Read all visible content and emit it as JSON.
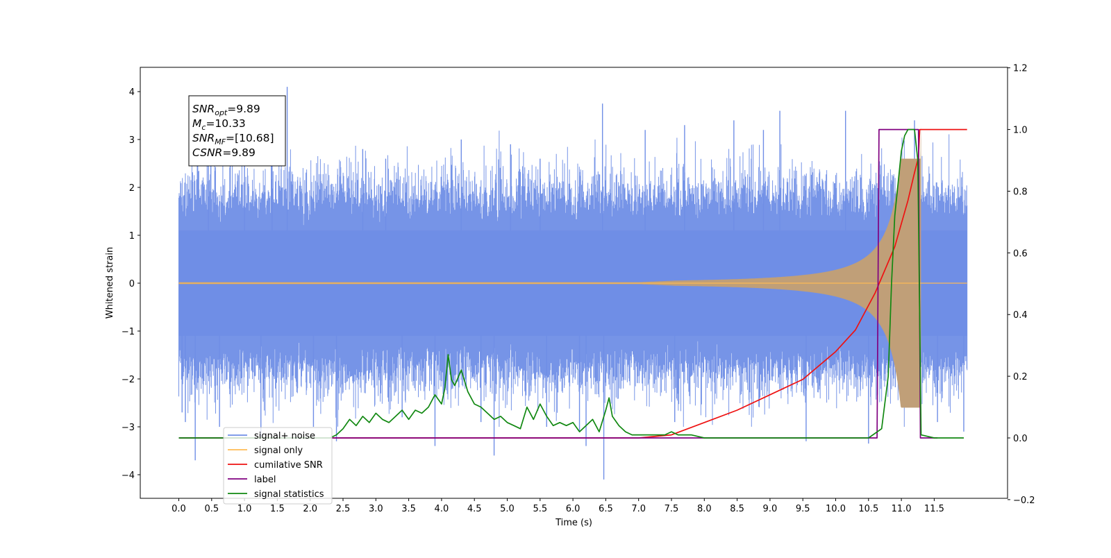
{
  "chart_data": {
    "type": "line",
    "xlabel": "Time (s)",
    "ylabel": "Whitened strain",
    "xlim": [
      -0.6,
      12.6
    ],
    "ylim": [
      -4.5,
      4.5
    ],
    "y2lim": [
      -0.2,
      1.2
    ],
    "x_ticks": [
      0.0,
      0.5,
      1.0,
      1.5,
      2.0,
      2.5,
      3.0,
      3.5,
      4.0,
      4.5,
      5.0,
      5.5,
      6.0,
      6.5,
      7.0,
      7.5,
      8.0,
      8.5,
      9.0,
      9.5,
      10.0,
      10.5,
      11.0,
      11.5
    ],
    "x_tick_labels": [
      "0.0",
      "0.5",
      "1.0",
      "1.5",
      "2.0",
      "2.5",
      "3.0",
      "3.5",
      "4.0",
      "4.5",
      "5.0",
      "5.5",
      "6.0",
      "6.5",
      "7.0",
      "7.5",
      "8.0",
      "8.5",
      "9.0",
      "9.5",
      "10.0",
      "10.5",
      "11.0",
      "11.5"
    ],
    "y_ticks": [
      -4,
      -3,
      -2,
      -1,
      0,
      1,
      2,
      3,
      4
    ],
    "y_tick_labels": [
      "−4",
      "−3",
      "−2",
      "−1",
      "0",
      "1",
      "2",
      "3",
      "4"
    ],
    "y2_ticks": [
      -0.2,
      0.0,
      0.2,
      0.4,
      0.6,
      0.8,
      1.0,
      1.2
    ],
    "y2_tick_labels": [
      "−0.2",
      "0.0",
      "0.2",
      "0.4",
      "0.6",
      "0.8",
      "1.0",
      "1.2"
    ],
    "grid": false,
    "legend_position": "bottom-left",
    "series": [
      {
        "name": "signal+ noise",
        "axis": "left",
        "color": "#6f8ee6",
        "style": "noise",
        "x_range": [
          0.0,
          12.0
        ],
        "envelope_typical": 1.9,
        "peaks": [
          [
            0.05,
            -2.7
          ],
          [
            0.1,
            -2.9
          ],
          [
            0.25,
            -3.7
          ],
          [
            0.45,
            2.9
          ],
          [
            0.62,
            -3.0
          ],
          [
            1.0,
            2.5
          ],
          [
            1.25,
            -3.2
          ],
          [
            1.42,
            2.9
          ],
          [
            1.65,
            4.1
          ],
          [
            2.05,
            -3.0
          ],
          [
            2.4,
            -3.3
          ],
          [
            2.8,
            2.8
          ],
          [
            3.15,
            2.6
          ],
          [
            3.4,
            -2.8
          ],
          [
            3.9,
            -3.4
          ],
          [
            4.3,
            3.0
          ],
          [
            4.6,
            -2.9
          ],
          [
            4.8,
            -3.6
          ],
          [
            5.05,
            2.9
          ],
          [
            5.5,
            2.6
          ],
          [
            5.6,
            -3.0
          ],
          [
            6.1,
            -3.1
          ],
          [
            6.2,
            -3.4
          ],
          [
            6.45,
            3.75
          ],
          [
            6.47,
            -4.1
          ],
          [
            7.1,
            3.2
          ],
          [
            7.55,
            -2.9
          ],
          [
            7.7,
            3.3
          ],
          [
            8.45,
            3.4
          ],
          [
            8.9,
            3.2
          ],
          [
            9.15,
            3.6
          ],
          [
            9.55,
            -3.3
          ],
          [
            10.15,
            3.6
          ],
          [
            10.5,
            -3.35
          ],
          [
            11.2,
            3.4
          ],
          [
            11.55,
            -2.9
          ],
          [
            11.95,
            -3.1
          ]
        ]
      },
      {
        "name": "signal only",
        "axis": "left",
        "color": "#ffbb55",
        "style": "chirp",
        "t_merge": 11.3,
        "amp_at_merge": 2.6,
        "amp_at_10": 0.27,
        "amp_at_8": 0.08
      },
      {
        "name": "cumilative SNR",
        "axis": "right",
        "color": "#ee1111",
        "x": [
          0.0,
          7.0,
          7.5,
          8.0,
          8.5,
          9.0,
          9.5,
          10.0,
          10.3,
          10.6,
          10.9,
          11.1,
          11.2,
          11.26,
          11.28,
          12.0
        ],
        "y": [
          0.0,
          0.0,
          0.01,
          0.05,
          0.09,
          0.14,
          0.19,
          0.28,
          0.35,
          0.47,
          0.62,
          0.77,
          0.86,
          0.91,
          1.0,
          1.0
        ]
      },
      {
        "name": "label",
        "axis": "right",
        "color": "#800080",
        "x": [
          0.0,
          10.63,
          10.66,
          11.26,
          11.29,
          11.55
        ],
        "y": [
          0.0,
          0.0,
          1.0,
          1.0,
          0.0,
          0.0
        ]
      },
      {
        "name": "signal statistics",
        "axis": "right",
        "color": "#118811",
        "x": [
          0.0,
          2.3,
          2.4,
          2.5,
          2.6,
          2.7,
          2.8,
          2.9,
          3.0,
          3.1,
          3.2,
          3.3,
          3.4,
          3.5,
          3.6,
          3.7,
          3.8,
          3.9,
          4.0,
          4.05,
          4.1,
          4.15,
          4.2,
          4.3,
          4.4,
          4.5,
          4.6,
          4.7,
          4.8,
          4.9,
          5.0,
          5.1,
          5.2,
          5.3,
          5.4,
          5.5,
          5.6,
          5.7,
          5.8,
          5.9,
          6.0,
          6.1,
          6.2,
          6.3,
          6.4,
          6.5,
          6.55,
          6.6,
          6.7,
          6.8,
          6.9,
          7.0,
          7.2,
          7.4,
          7.5,
          7.6,
          7.8,
          8.0,
          8.5,
          10.2,
          10.5,
          10.7,
          10.8,
          10.85,
          10.9,
          11.0,
          11.05,
          11.1,
          11.2,
          11.25,
          11.3,
          11.5,
          11.95
        ],
        "y": [
          0.0,
          0.0,
          0.01,
          0.03,
          0.06,
          0.04,
          0.07,
          0.05,
          0.08,
          0.06,
          0.05,
          0.07,
          0.09,
          0.06,
          0.09,
          0.08,
          0.1,
          0.14,
          0.11,
          0.16,
          0.27,
          0.19,
          0.17,
          0.22,
          0.15,
          0.11,
          0.1,
          0.08,
          0.06,
          0.07,
          0.05,
          0.04,
          0.03,
          0.1,
          0.06,
          0.11,
          0.07,
          0.04,
          0.05,
          0.04,
          0.05,
          0.02,
          0.04,
          0.06,
          0.02,
          0.09,
          0.13,
          0.07,
          0.04,
          0.02,
          0.01,
          0.01,
          0.01,
          0.01,
          0.02,
          0.01,
          0.01,
          0.0,
          0.0,
          0.0,
          0.0,
          0.03,
          0.2,
          0.5,
          0.72,
          0.93,
          0.98,
          1.0,
          1.0,
          0.9,
          0.01,
          0.0,
          0.0
        ]
      }
    ],
    "legend": [
      {
        "label": "signal+ noise",
        "color": "#6f8ee6"
      },
      {
        "label": "signal only",
        "color": "#ffbb55"
      },
      {
        "label": "cumilative SNR",
        "color": "#ee1111"
      },
      {
        "label": "label",
        "color": "#800080"
      },
      {
        "label": "signal statistics",
        "color": "#118811"
      }
    ],
    "annotation": {
      "lines": [
        {
          "main": "SNR",
          "sub": "opt",
          "rest": "=9.89"
        },
        {
          "main": "M",
          "sub": "c",
          "rest": "=10.33"
        },
        {
          "main": "SNR",
          "sub": "MF",
          "rest": "=[10.68]"
        },
        {
          "main": "CSNR",
          "sub": "",
          "rest": "=9.89"
        }
      ]
    }
  }
}
